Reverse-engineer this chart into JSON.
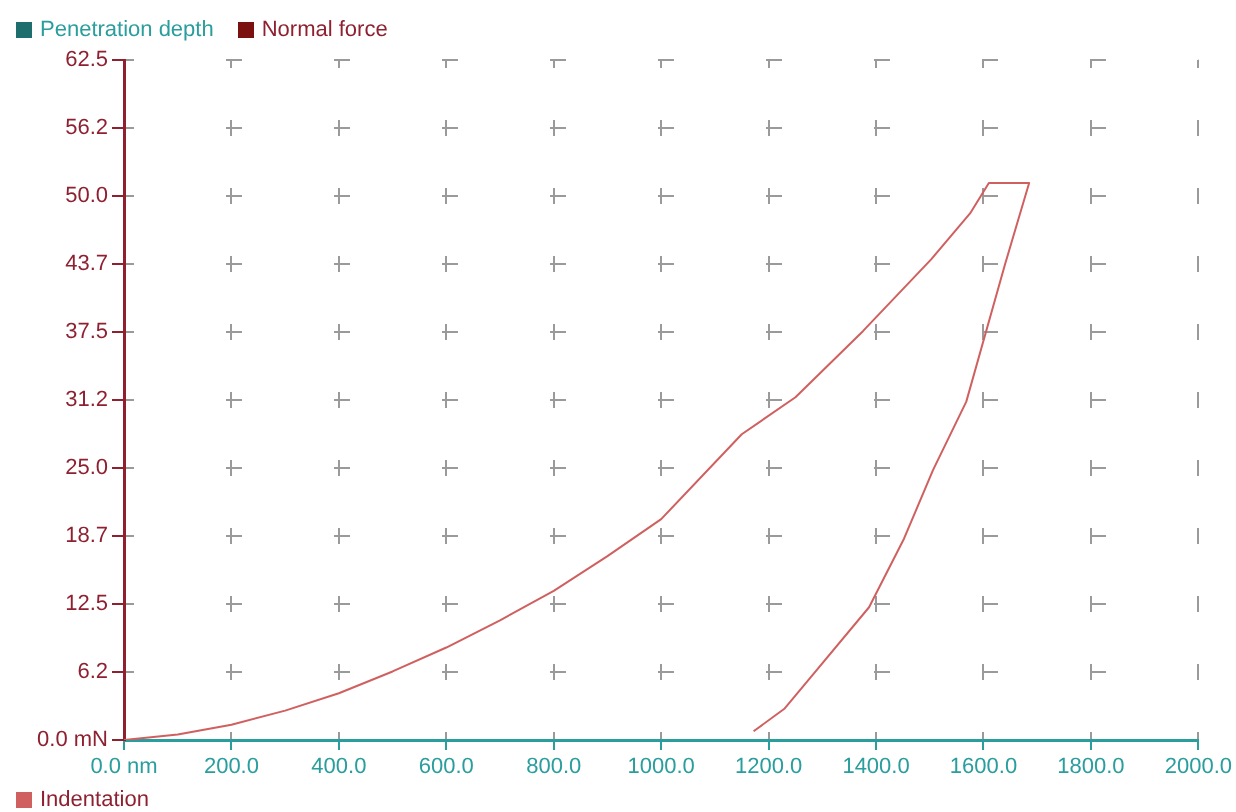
{
  "chart_data": {
    "type": "line",
    "xlabel": "Penetration depth",
    "ylabel": "Normal force",
    "xlim": [
      0,
      2000
    ],
    "ylim": [
      0,
      62.5
    ],
    "xticks": [
      {
        "value": 0,
        "label": "0.0 nm"
      },
      {
        "value": 200,
        "label": "200.0"
      },
      {
        "value": 400,
        "label": "400.0"
      },
      {
        "value": 600,
        "label": "600.0"
      },
      {
        "value": 800,
        "label": "800.0"
      },
      {
        "value": 1000,
        "label": "1000.0"
      },
      {
        "value": 1200,
        "label": "1200.0"
      },
      {
        "value": 1400,
        "label": "1400.0"
      },
      {
        "value": 1600,
        "label": "1600.0"
      },
      {
        "value": 1800,
        "label": "1800.0"
      },
      {
        "value": 2000,
        "label": "2000.0"
      }
    ],
    "yticks": [
      {
        "value": 0,
        "label": "0.0 mN"
      },
      {
        "value": 6.25,
        "label": "6.2"
      },
      {
        "value": 12.5,
        "label": "12.5"
      },
      {
        "value": 18.75,
        "label": "18.7"
      },
      {
        "value": 25,
        "label": "25.0"
      },
      {
        "value": 31.25,
        "label": "31.2"
      },
      {
        "value": 37.5,
        "label": "37.5"
      },
      {
        "value": 43.75,
        "label": "43.7"
      },
      {
        "value": 50,
        "label": "50.0"
      },
      {
        "value": 56.25,
        "label": "56.2"
      },
      {
        "value": 62.5,
        "label": "62.5"
      }
    ],
    "grid": true,
    "legend": "bottom left",
    "marker": "none",
    "line_style": "solid",
    "series": [
      {
        "name": "Indentation",
        "color": "#d06060",
        "x": [
          0,
          100,
          200,
          300,
          400,
          500,
          600,
          700,
          800,
          900,
          1000,
          1150,
          1250,
          1376,
          1503,
          1575,
          1610,
          1685,
          1640,
          1568,
          1506,
          1452,
          1387,
          1284,
          1230,
          1172
        ],
        "values": [
          0,
          0.5,
          1.4,
          2.7,
          4.3,
          6.3,
          8.5,
          11,
          13.7,
          16.9,
          20.3,
          28.1,
          31.5,
          37.6,
          44.2,
          48.4,
          51.2,
          51.2,
          43.7,
          31.1,
          24.8,
          18.5,
          12.2,
          6.1,
          2.9,
          0.8
        ]
      }
    ]
  }
}
